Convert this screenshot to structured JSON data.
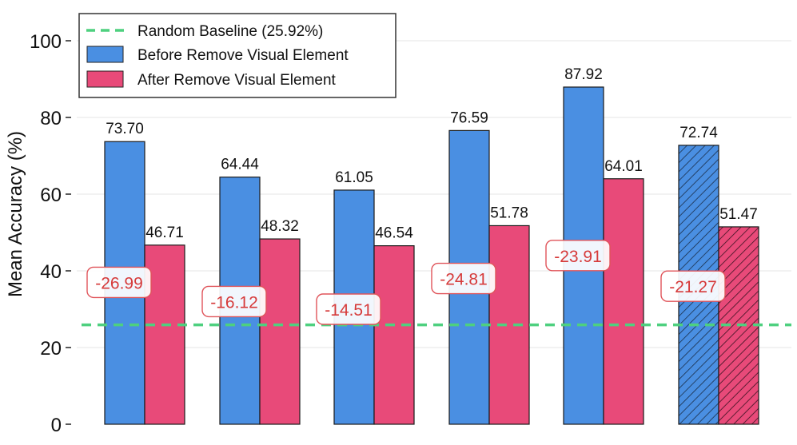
{
  "chart_data": {
    "type": "bar",
    "ylabel": "Mean Accuracy (%)",
    "xlabel": "",
    "ylim": [
      0,
      108
    ],
    "yticks": [
      0,
      20,
      40,
      60,
      80,
      100
    ],
    "y_tick_labels": [
      "0",
      "20",
      "40",
      "60",
      "80",
      "100"
    ],
    "grid": "horizontal",
    "legend_position": "top-left",
    "baseline": {
      "name": "Random Baseline (25.92%)",
      "value": 25.92
    },
    "series": [
      {
        "name": "Before Remove Visual Element",
        "values": [
          73.7,
          64.44,
          61.05,
          76.59,
          87.92,
          72.74
        ],
        "labels": [
          "73.70",
          "64.44",
          "61.05",
          "76.59",
          "87.92",
          "72.74"
        ]
      },
      {
        "name": "After Remove Visual Element",
        "values": [
          46.71,
          48.32,
          46.54,
          51.78,
          64.01,
          51.47
        ],
        "labels": [
          "46.71",
          "48.32",
          "46.54",
          "51.78",
          "64.01",
          "51.47"
        ]
      }
    ],
    "differences": [
      "-26.99",
      "-16.12",
      "-14.51",
      "-24.81",
      "-23.91",
      "-21.27"
    ],
    "difference_levels": [
      37,
      32,
      30,
      38,
      44,
      36
    ],
    "hatched_group": 5,
    "colors": {
      "before": "#4a8fe2",
      "after": "#e84a79",
      "baseline": "#4ed07f",
      "diff_text": "#d63a3a",
      "diff_border": "#e0545a"
    }
  }
}
